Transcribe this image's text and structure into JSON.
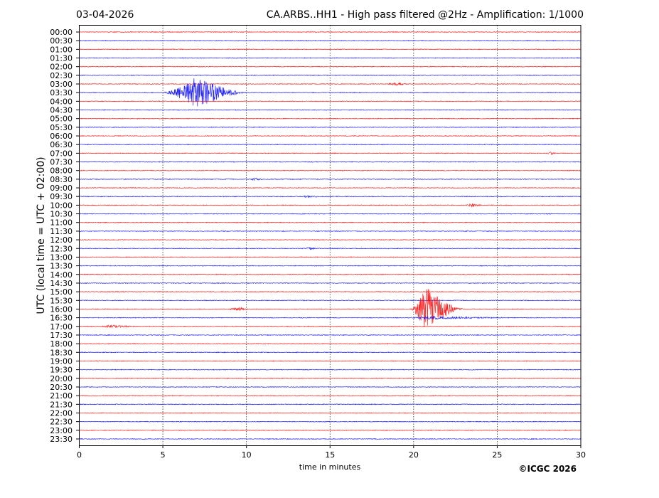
{
  "header": {
    "date": "03-04-2026",
    "title": "CA.ARBS..HH1 - High pass filtered @2Hz - Amplification: 1/1000"
  },
  "copyright": "©ICGC 2026",
  "chart_data": {
    "type": "line",
    "subtype": "helicorder",
    "title": "CA.ARBS..HH1 - High pass filtered @2Hz - Amplification: 1/1000",
    "xlabel": "time in minutes",
    "ylabel": "UTC (local time = UTC + 02:00)",
    "xlim": [
      0,
      30
    ],
    "x_ticks": [
      "0",
      "5",
      "10",
      "15",
      "20",
      "25",
      "30"
    ],
    "grid": "vertical dotted at 5-minute intervals",
    "colors": {
      "hour_rows": "#ff0000",
      "half_hour_rows": "#0000ff"
    },
    "rows": [
      "00:00",
      "00:30",
      "01:00",
      "01:30",
      "02:00",
      "02:30",
      "03:00",
      "03:30",
      "04:00",
      "04:30",
      "05:00",
      "05:30",
      "06:00",
      "06:30",
      "07:00",
      "07:30",
      "08:00",
      "08:30",
      "09:00",
      "09:30",
      "10:00",
      "10:30",
      "11:00",
      "11:30",
      "12:00",
      "12:30",
      "13:00",
      "13:30",
      "14:00",
      "14:30",
      "15:00",
      "15:30",
      "16:00",
      "16:30",
      "17:00",
      "17:30",
      "18:00",
      "18:30",
      "19:00",
      "19:30",
      "20:00",
      "20:30",
      "21:00",
      "21:30",
      "22:00",
      "22:30",
      "23:00",
      "23:30"
    ],
    "events": [
      {
        "row": "03:30",
        "start_min": 5.0,
        "peak_min": 7.0,
        "end_min": 10.0,
        "amplitude": 1.0
      },
      {
        "row": "03:00",
        "start_min": 18.3,
        "peak_min": 19.0,
        "end_min": 19.8,
        "amplitude": 0.08
      },
      {
        "row": "07:00",
        "start_min": 27.9,
        "peak_min": 28.2,
        "end_min": 28.6,
        "amplitude": 0.08
      },
      {
        "row": "08:30",
        "start_min": 10.2,
        "peak_min": 10.5,
        "end_min": 11.0,
        "amplitude": 0.08
      },
      {
        "row": "09:30",
        "start_min": 13.3,
        "peak_min": 13.6,
        "end_min": 14.6,
        "amplitude": 0.06
      },
      {
        "row": "10:00",
        "start_min": 23.1,
        "peak_min": 23.5,
        "end_min": 24.1,
        "amplitude": 0.12
      },
      {
        "row": "12:30",
        "start_min": 13.5,
        "peak_min": 13.8,
        "end_min": 14.2,
        "amplitude": 0.1
      },
      {
        "row": "16:00",
        "start_min": 8.8,
        "peak_min": 9.6,
        "end_min": 10.2,
        "amplitude": 0.1
      },
      {
        "row": "16:00",
        "start_min": 19.8,
        "peak_min": 20.7,
        "end_min": 23.0,
        "amplitude": 1.4
      },
      {
        "row": "16:30",
        "start_min": 19.5,
        "peak_min": 21.0,
        "end_min": 26.0,
        "amplitude": 0.08
      },
      {
        "row": "17:00",
        "start_min": 1.2,
        "peak_min": 1.8,
        "end_min": 3.5,
        "amplitude": 0.08
      }
    ]
  }
}
